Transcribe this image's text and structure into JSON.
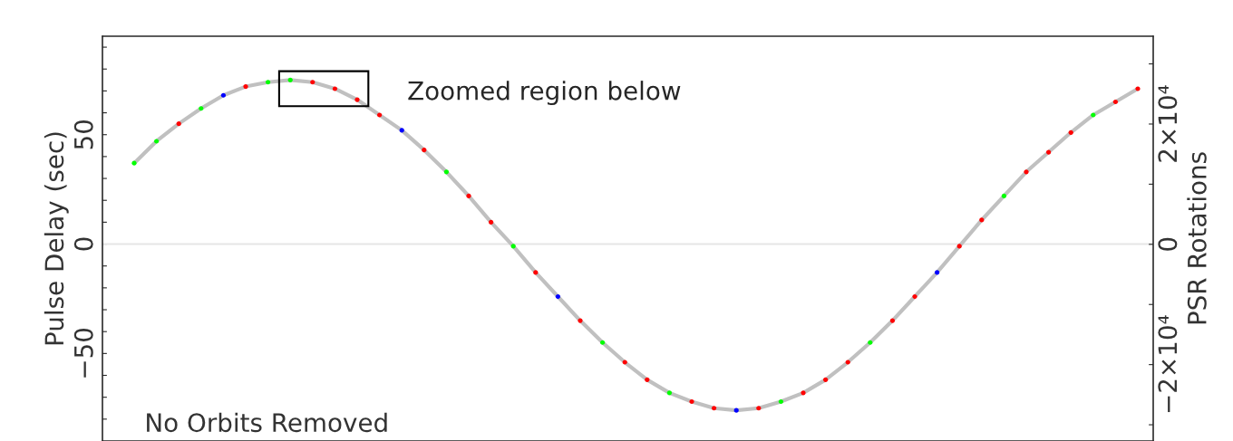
{
  "chart_data": {
    "type": "scatter",
    "categories": [
      null,
      null,
      null,
      null,
      null,
      null,
      null,
      null,
      null,
      null,
      null,
      null,
      null,
      null,
      null,
      null,
      null,
      null,
      null,
      null,
      null,
      null,
      null,
      null,
      null,
      null,
      null,
      null,
      null,
      null,
      null,
      null,
      null,
      null,
      null,
      null,
      null,
      null,
      null,
      null,
      null,
      null,
      null,
      null,
      null,
      null
    ],
    "series": [
      {
        "type": "line",
        "marker": "none",
        "color": "#c0c0c0",
        "values": [
          37,
          47,
          55,
          62,
          68,
          72,
          74,
          75,
          74,
          71,
          66,
          59,
          52,
          43,
          33,
          22,
          10,
          -1,
          -13,
          -24,
          -35,
          -45,
          -54,
          -62,
          -68,
          -72,
          -75,
          -76,
          -75,
          -72,
          -68,
          -62,
          -54,
          -45,
          -35,
          -24,
          -13,
          -1,
          11,
          22,
          33,
          42,
          51,
          59,
          65,
          71
        ]
      },
      {
        "values": [
          37,
          47,
          55,
          62,
          68,
          72,
          74,
          75,
          74,
          71,
          66,
          59,
          52,
          43,
          33,
          22,
          10,
          -1,
          -13,
          -24,
          -35,
          -45,
          -54,
          -62,
          -68,
          -72,
          -75,
          -76,
          -75,
          -72,
          -68,
          -62,
          -54,
          -45,
          -35,
          -24,
          -13,
          -1,
          11,
          22,
          33,
          42,
          51,
          59,
          65,
          71
        ],
        "colors": [
          "#00ff00",
          "#00ff00",
          "#ff0000",
          "#00ff00",
          "#0000ff",
          "#ff0000",
          "#00ff00",
          "#00ff00",
          "#ff0000",
          "#ff0000",
          "#ff0000",
          "#ff0000",
          "#0000ff",
          "#ff0000",
          "#00ff00",
          "#ff0000",
          "#ff0000",
          "#00ff00",
          "#ff0000",
          "#0000ff",
          "#ff0000",
          "#00ff00",
          "#ff0000",
          "#ff0000",
          "#00ff00",
          "#ff0000",
          "#ff0000",
          "#0000ff",
          "#ff0000",
          "#00ff00",
          "#ff0000",
          "#ff0000",
          "#ff0000",
          "#00ff00",
          "#ff0000",
          "#ff0000",
          "#0000ff",
          "#ff0000",
          "#ff0000",
          "#00ff00",
          "#ff0000",
          "#ff0000",
          "#ff0000",
          "#00ff00",
          "#ff0000",
          "#ff0000"
        ]
      }
    ],
    "ylabel": "Pulse Delay (sec)",
    "y2label": "PSR Rotations",
    "ylim": [
      -90,
      95
    ],
    "yticks": [
      {
        "value": -80,
        "label": null
      },
      {
        "value": -70,
        "label": null
      },
      {
        "value": -60,
        "label": null
      },
      {
        "value": -50,
        "label": "−50"
      },
      {
        "value": -40,
        "label": null
      },
      {
        "value": -30,
        "label": null
      },
      {
        "value": -20,
        "label": null
      },
      {
        "value": -10,
        "label": null
      },
      0,
      {
        "value": 10,
        "label": null
      },
      {
        "value": 20,
        "label": null
      },
      {
        "value": 30,
        "label": null
      },
      {
        "value": 40,
        "label": null
      },
      50,
      {
        "value": 60,
        "label": null
      },
      {
        "value": 70,
        "label": null
      },
      {
        "value": 80,
        "label": null
      },
      {
        "value": 90,
        "label": null
      }
    ],
    "y2lim": [
      -32700,
      34600
    ],
    "y2ticks": [
      {
        "value": -30000,
        "label": null
      },
      {
        "value": -20000,
        "label": "−2×10⁴"
      },
      {
        "value": -10000,
        "label": null
      },
      0,
      {
        "value": 10000,
        "label": null
      },
      {
        "value": 20000,
        "label": "2×10⁴"
      },
      {
        "value": 30000,
        "label": null
      }
    ],
    "ref_lines": [
      {
        "axis": "y",
        "value": 0,
        "color": "#e6e6e6"
      }
    ],
    "annotations": [
      "Zoomed region below",
      "No Orbits Removed"
    ],
    "marker": "circle",
    "grid": false,
    "legend": false
  }
}
